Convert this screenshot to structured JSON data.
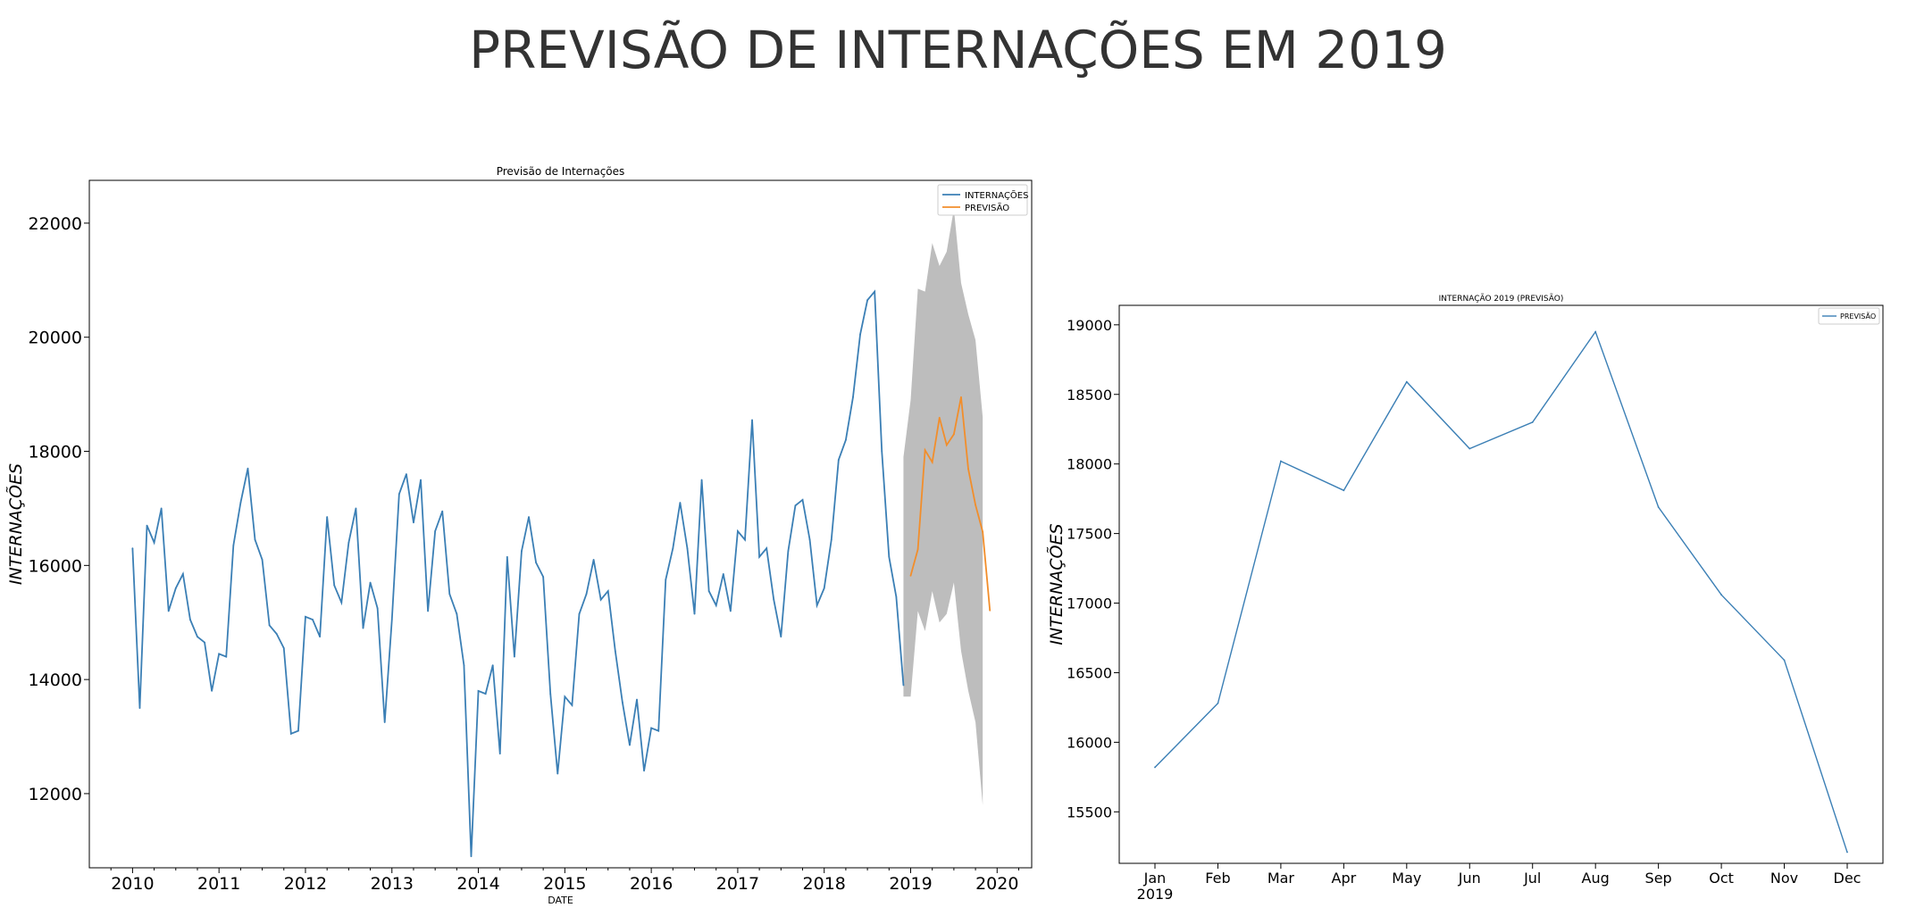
{
  "page": {
    "title": "PREVISÃO DE INTERNAÇÕES EM 2019"
  },
  "colors": {
    "blue": "#3b7fb5",
    "orange": "#f28e2b",
    "band": "#bdbdbd"
  },
  "chart_data": [
    {
      "type": "line",
      "title": "Previsão de Internações",
      "xlabel": "DATE",
      "ylabel": "INTERNAÇÕES",
      "xlim": [
        2009.5,
        2020.4
      ],
      "ylim": [
        10700,
        22750
      ],
      "x_ticks": [
        "2010",
        "2011",
        "2012",
        "2013",
        "2014",
        "2015",
        "2016",
        "2017",
        "2018",
        "2019",
        "2020"
      ],
      "y_ticks": [
        12000,
        14000,
        16000,
        18000,
        20000,
        22000
      ],
      "legend": {
        "position": "top-right",
        "entries": [
          "INTERNAÇÕES",
          "PREVISÃO"
        ]
      },
      "series": [
        {
          "name": "INTERNAÇÕES",
          "color": "#3b7fb5",
          "start": "2010-01",
          "values": [
            16300,
            13500,
            16700,
            16400,
            17000,
            15200,
            15600,
            15850,
            15050,
            14750,
            14650,
            13800,
            14450,
            14400,
            16350,
            17100,
            17700,
            16450,
            16100,
            14950,
            14800,
            14550,
            13050,
            13100,
            15100,
            15050,
            14750,
            16850,
            15650,
            15350,
            16400,
            17000,
            14900,
            15700,
            15250,
            13250,
            15050,
            17250,
            17600,
            16750,
            17500,
            15200,
            16600,
            16950,
            15500,
            15150,
            14250,
            10900,
            13800,
            13750,
            14250,
            12700,
            16150,
            14400,
            16250,
            16850,
            16050,
            15800,
            13750,
            12350,
            13700,
            13550,
            15150,
            15500,
            16100,
            15400,
            15550,
            14500,
            13600,
            12850,
            13650,
            12400,
            13150,
            13100,
            15750,
            16300,
            17100,
            16300,
            15150,
            17500,
            15550,
            15300,
            15850,
            15200,
            16600,
            16450,
            18550,
            16150,
            16300,
            15400,
            14750,
            16250,
            17050,
            17150,
            16450,
            15300,
            15600,
            16450,
            17850,
            18200,
            18950,
            20050,
            20650,
            20800,
            18000,
            16150,
            15450,
            13900
          ]
        },
        {
          "name": "PREVISÃO",
          "color": "#f28e2b",
          "start": "2019-01",
          "values": [
            15820,
            16280,
            18020,
            17810,
            18590,
            18110,
            18300,
            18950,
            17690,
            17060,
            16590,
            15210
          ]
        }
      ],
      "confidence_band": {
        "start": "2018-12",
        "upper": [
          17900,
          18900,
          20850,
          20800,
          21650,
          21250,
          21500,
          22250,
          20950,
          20400,
          19950,
          18600
        ],
        "lower": [
          13700,
          13700,
          15200,
          14850,
          15550,
          15000,
          15150,
          15700,
          14500,
          13800,
          13250,
          11800
        ]
      }
    },
    {
      "type": "line",
      "title": "INTERNAÇÃO 2019 (PREVISÃO)",
      "xlabel": "",
      "ylabel": "INTERNAÇÕES",
      "categories": [
        "Jan",
        "Feb",
        "Mar",
        "Apr",
        "May",
        "Jun",
        "Jul",
        "Aug",
        "Sep",
        "Oct",
        "Nov",
        "Dec"
      ],
      "year_label": "2019",
      "ylim": [
        15130,
        19140
      ],
      "y_ticks": [
        15500,
        16000,
        16500,
        17000,
        17500,
        18000,
        18500,
        19000
      ],
      "legend": {
        "position": "top-right",
        "entries": [
          "PREVISÃO"
        ]
      },
      "series": [
        {
          "name": "PREVISÃO",
          "color": "#3b7fb5",
          "values": [
            15820,
            16280,
            18020,
            17810,
            18590,
            18110,
            18300,
            18950,
            17690,
            17060,
            16590,
            15210
          ]
        }
      ]
    }
  ]
}
